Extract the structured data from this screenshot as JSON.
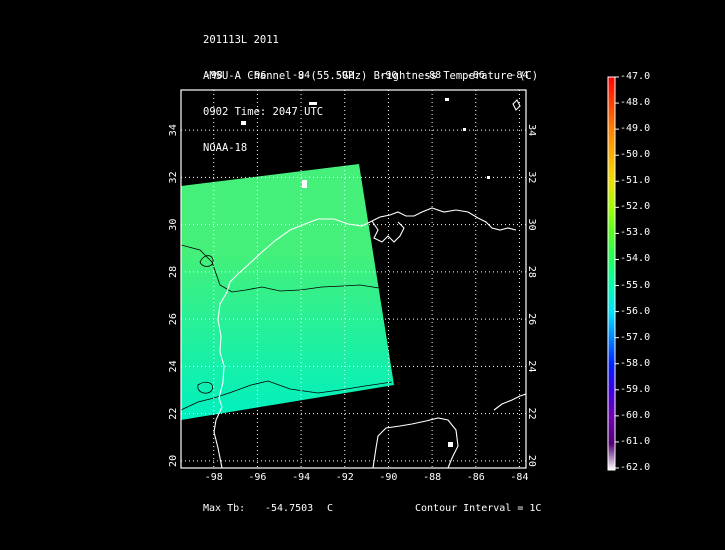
{
  "header": {
    "lines": [
      "201113L 2011",
      "AMSU-A Channel 8 (55.5GHz) Brightness Temperature (C)",
      "0902 Time: 2047 UTC",
      "NOAA-18"
    ]
  },
  "map": {
    "lon_ticks": [
      "-98",
      "-96",
      "-94",
      "-92",
      "-90",
      "-88",
      "-86",
      "-84"
    ],
    "lat_ticks": [
      "20",
      "22",
      "24",
      "26",
      "28",
      "30",
      "32",
      "34"
    ],
    "lon_range": [
      -99.5,
      -83.7
    ],
    "lat_range": [
      19.7,
      35.7
    ],
    "swath_colors": {
      "north": "#44f07a",
      "south": "#00f0c0"
    }
  },
  "colorbar": {
    "labels": [
      "-47.0",
      "-48.0",
      "-49.0",
      "-50.0",
      "-51.0",
      "-52.0",
      "-53.0",
      "-54.0",
      "-55.0",
      "-56.0",
      "-57.0",
      "-58.0",
      "-59.0",
      "-60.0",
      "-61.0",
      "-62.0"
    ],
    "colors": [
      "#ff0000",
      "#ff4000",
      "#ff8000",
      "#ffb000",
      "#f0e000",
      "#a0ff00",
      "#50ff20",
      "#20ff60",
      "#00ffb0",
      "#00e0ff",
      "#0080ff",
      "#0020ff",
      "#4000e0",
      "#7000b0",
      "#500070",
      "#ffffff"
    ]
  },
  "footer": {
    "max_label": "Max Tb:",
    "max_value": "-54.7503",
    "max_unit": "C",
    "contour": "Contour Interval = 1C"
  }
}
